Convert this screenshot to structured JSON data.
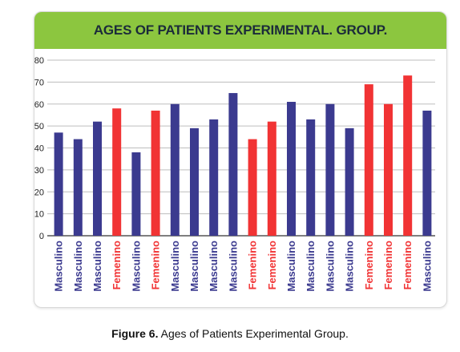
{
  "chart_data": {
    "type": "bar",
    "title": "AGES OF PATIENTS EXPERIMENTAL. GROUP.",
    "xlabel": "",
    "ylabel": "",
    "ylim": [
      0,
      80
    ],
    "yticks": [
      "80",
      "70",
      "60",
      "50",
      "40",
      "30",
      "20",
      "10",
      "0"
    ],
    "grid": true,
    "categories": [
      "Masculino",
      "Masculino",
      "Masculino",
      "Femenino",
      "Masculino",
      "Femenino",
      "Masculino",
      "Masculino",
      "Masculino",
      "Masculino",
      "Femenino",
      "Femenino",
      "Masculino",
      "Masculino",
      "Masculino",
      "Masculino",
      "Femenino",
      "Femenino",
      "Femenino",
      "Masculino"
    ],
    "values": [
      47,
      44,
      52,
      58,
      38,
      57,
      60,
      49,
      53,
      65,
      44,
      52,
      61,
      53,
      60,
      49,
      69,
      60,
      73,
      57
    ],
    "colors": {
      "Masculino": "#3b3a8f",
      "Femenino": "#f13334"
    }
  },
  "caption": {
    "label": "Figure 6.",
    "text": " Ages of Patients Experimental Group."
  }
}
